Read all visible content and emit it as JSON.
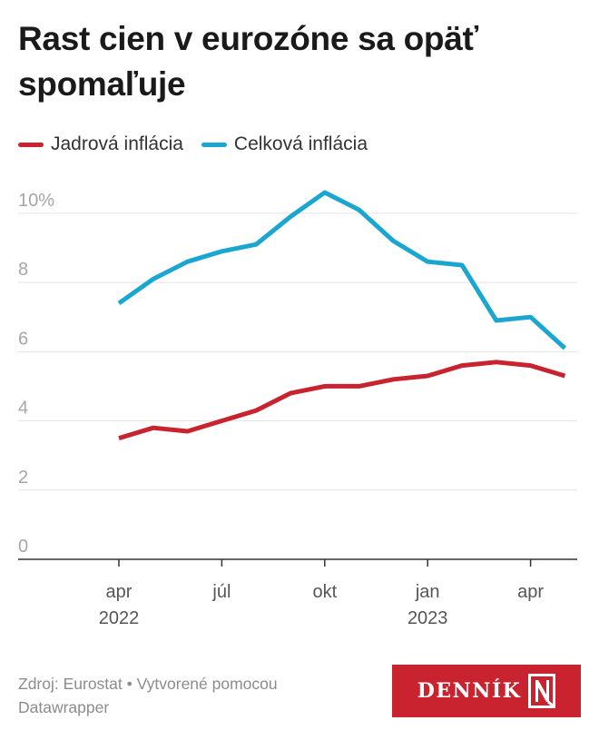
{
  "title": "Rast cien v eurozóne sa opäť spomaľuje",
  "legend": [
    {
      "label": "Jadrová inflácia",
      "color": "#c8232f"
    },
    {
      "label": "Celková inflácia",
      "color": "#1ba6d1"
    }
  ],
  "footer": {
    "source": "Zdroj: Eurostat • Vytvorené pomocou",
    "tool": "Datawrapper"
  },
  "logo": {
    "text": "DENNÍK",
    "mark": "N"
  },
  "chart_data": {
    "type": "line",
    "x": [
      "2022-04",
      "2022-05",
      "2022-06",
      "2022-07",
      "2022-08",
      "2022-09",
      "2022-10",
      "2022-11",
      "2022-12",
      "2023-01",
      "2023-02",
      "2023-03",
      "2023-04",
      "2023-05"
    ],
    "series": [
      {
        "name": "Jadrová inflácia",
        "color": "#c8232f",
        "values": [
          3.5,
          3.8,
          3.7,
          4.0,
          4.3,
          4.8,
          5.0,
          5.0,
          5.2,
          5.3,
          5.6,
          5.7,
          5.6,
          5.3
        ]
      },
      {
        "name": "Celková inflácia",
        "color": "#1ba6d1",
        "values": [
          7.4,
          8.1,
          8.6,
          8.9,
          9.1,
          9.9,
          10.6,
          10.1,
          9.2,
          8.6,
          8.5,
          6.9,
          7.0,
          6.1
        ]
      }
    ],
    "y_ticks": [
      "10%",
      "8",
      "6",
      "4",
      "2",
      "0"
    ],
    "y_tick_values": [
      10,
      8,
      6,
      4,
      2,
      0
    ],
    "x_ticks": [
      {
        "label": "apr",
        "sub": "2022",
        "at": "2022-04"
      },
      {
        "label": "júl",
        "sub": "",
        "at": "2022-07"
      },
      {
        "label": "okt",
        "sub": "",
        "at": "2022-10"
      },
      {
        "label": "jan",
        "sub": "2023",
        "at": "2023-01"
      },
      {
        "label": "apr",
        "sub": "",
        "at": "2023-04"
      }
    ],
    "ylim": [
      0,
      10.6
    ],
    "grid": true,
    "legend_position": "top-left"
  }
}
